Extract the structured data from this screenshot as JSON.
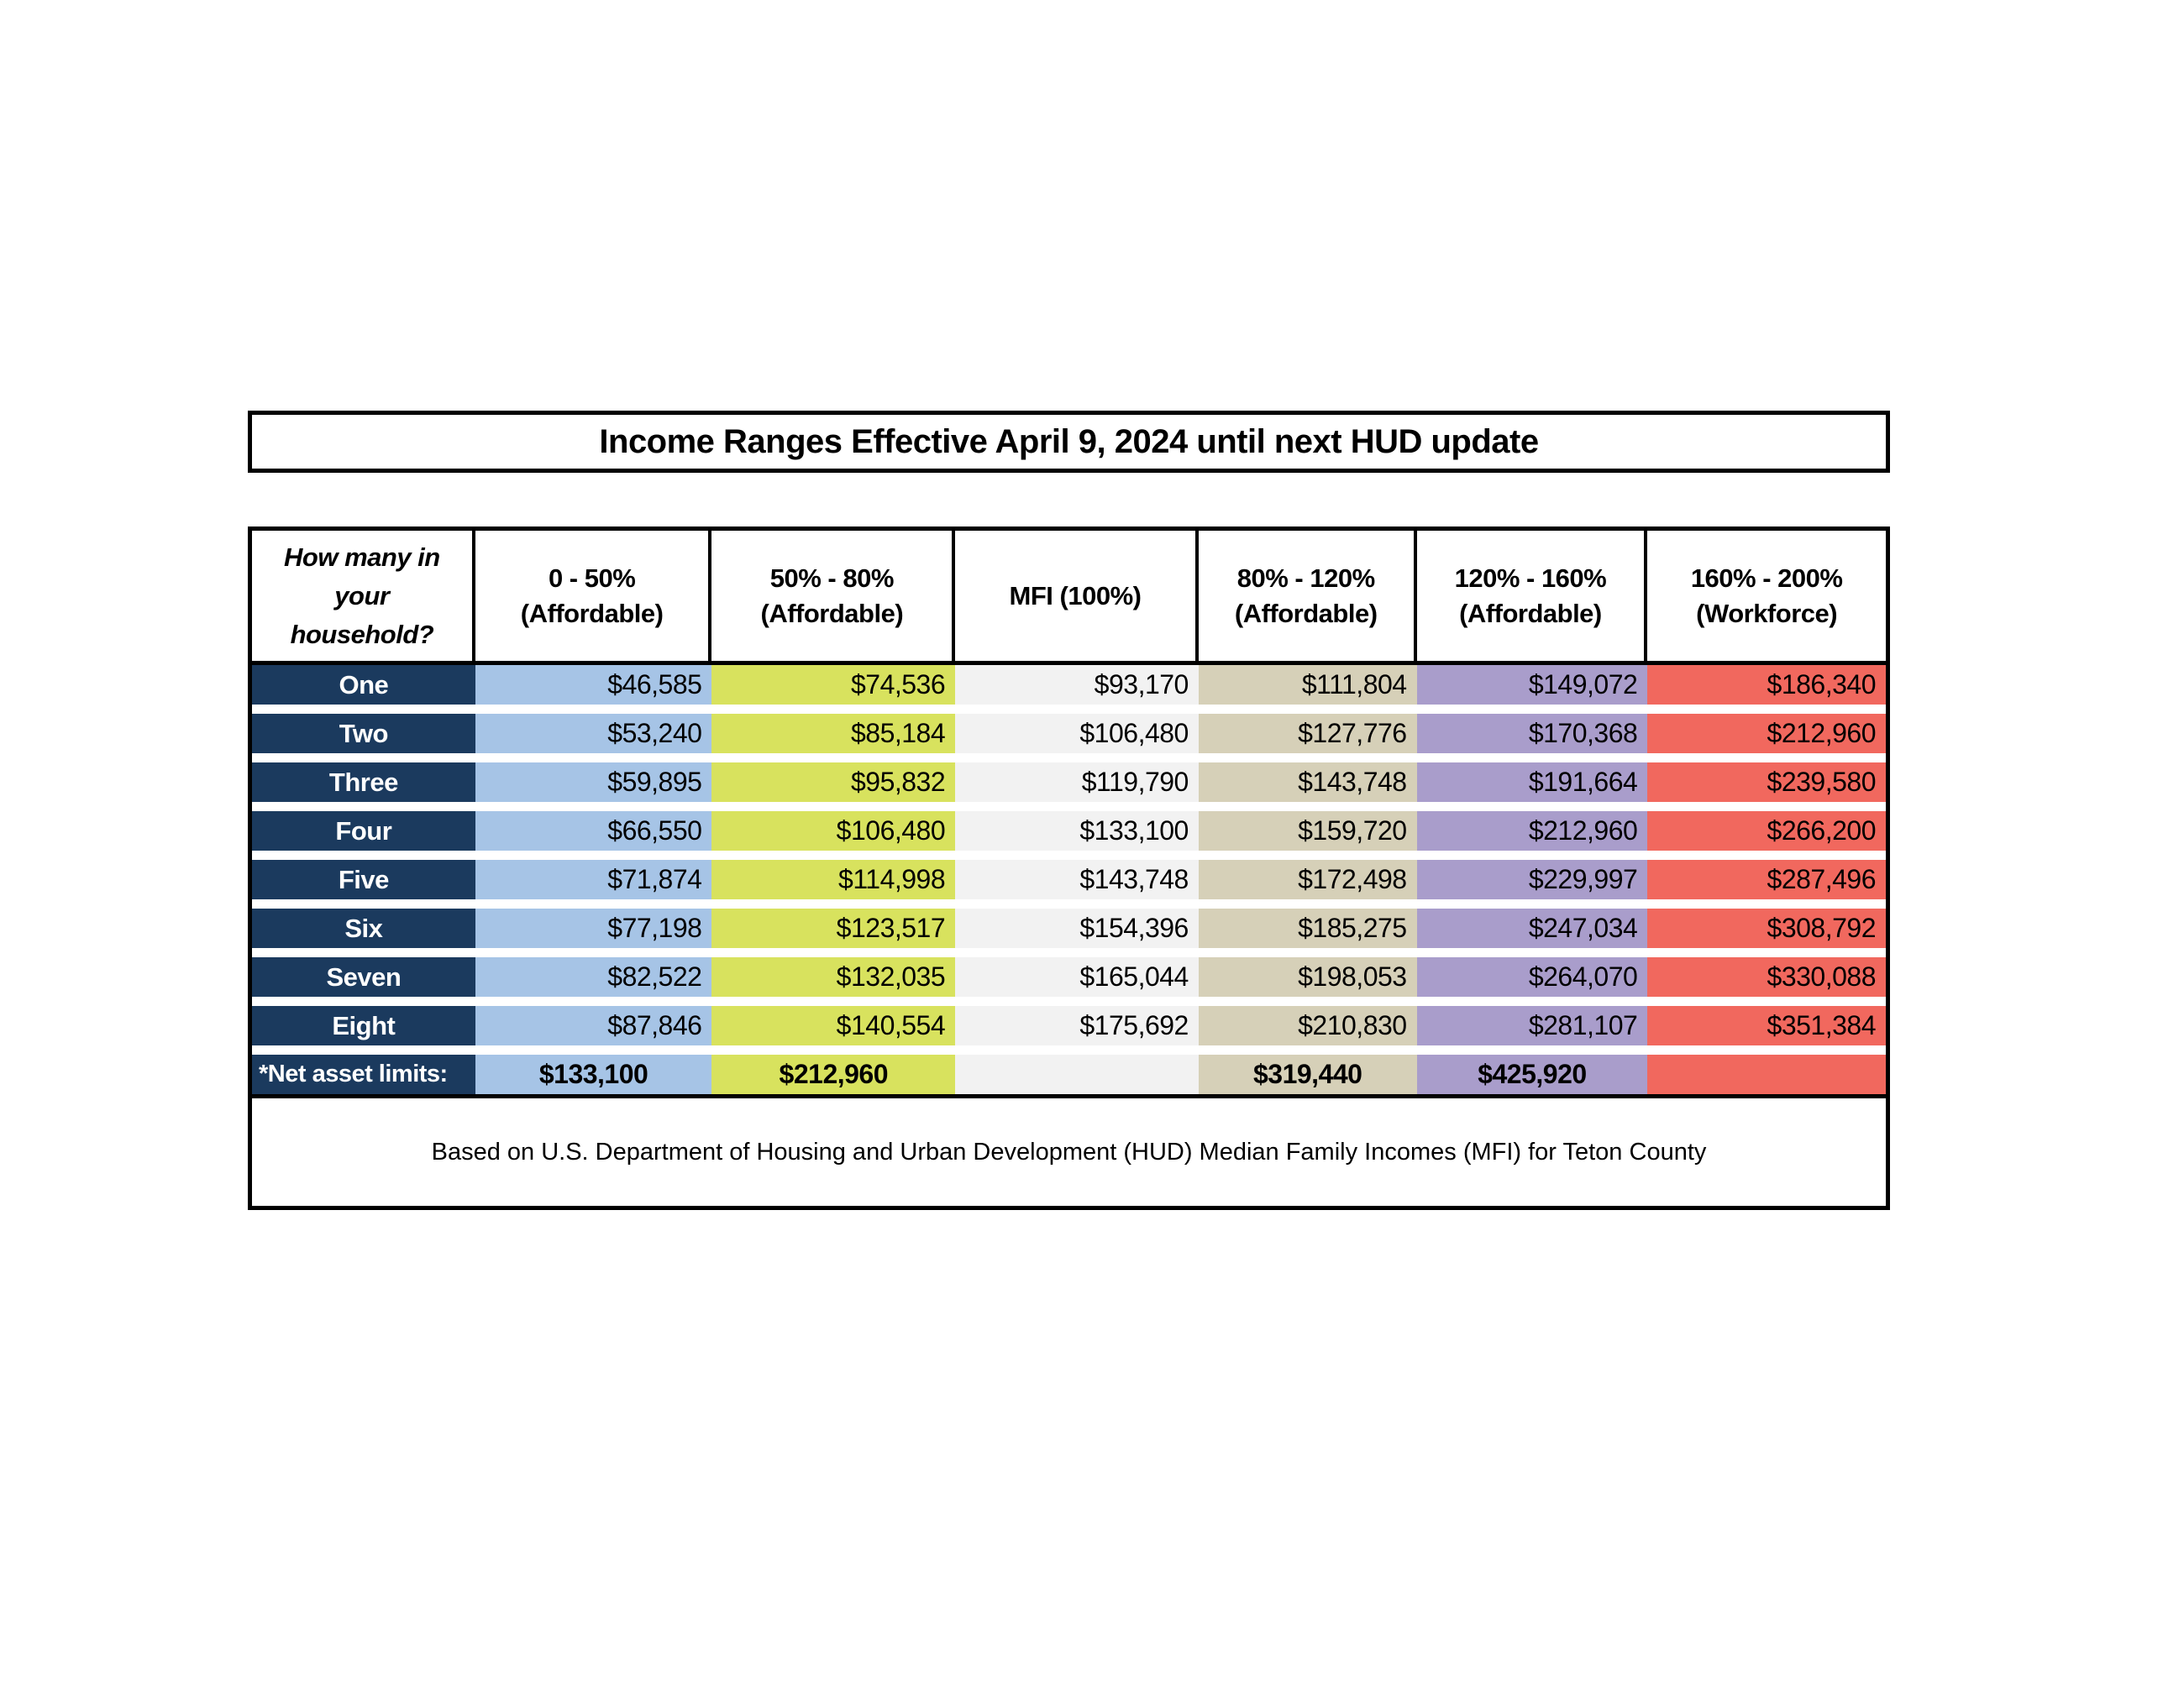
{
  "title": "Income Ranges Effective April 9, 2024 until next HUD update",
  "colors": {
    "navy": "#1b3a5e",
    "blue": "#a6c4e6",
    "green": "#d8e25e",
    "gray": "#f2f2f2",
    "tan": "#d6d0b8",
    "purple": "#a99dcb",
    "red": "#f1685e",
    "border": "#000000"
  },
  "table": {
    "row_header_label": "How many in your household?",
    "columns": [
      {
        "label_line1": "0 - 50%",
        "label_line2": "(Affordable)",
        "fill": "#a6c4e6"
      },
      {
        "label_line1": "50% - 80%",
        "label_line2": "(Affordable)",
        "fill": "#d8e25e"
      },
      {
        "label_line1": "MFI (100%)",
        "label_line2": "",
        "fill": "#f2f2f2"
      },
      {
        "label_line1": "80% - 120%",
        "label_line2": "(Affordable)",
        "fill": "#d6d0b8"
      },
      {
        "label_line1": "120% - 160%",
        "label_line2": "(Affordable)",
        "fill": "#a99dcb"
      },
      {
        "label_line1": "160% - 200%",
        "label_line2": "(Workforce)",
        "fill": "#f1685e"
      }
    ],
    "rows": [
      {
        "household": "One",
        "values": [
          "$46,585",
          "$74,536",
          "$93,170",
          "$111,804",
          "$149,072",
          "$186,340"
        ]
      },
      {
        "household": "Two",
        "values": [
          "$53,240",
          "$85,184",
          "$106,480",
          "$127,776",
          "$170,368",
          "$212,960"
        ]
      },
      {
        "household": "Three",
        "values": [
          "$59,895",
          "$95,832",
          "$119,790",
          "$143,748",
          "$191,664",
          "$239,580"
        ]
      },
      {
        "household": "Four",
        "values": [
          "$66,550",
          "$106,480",
          "$133,100",
          "$159,720",
          "$212,960",
          "$266,200"
        ]
      },
      {
        "household": "Five",
        "values": [
          "$71,874",
          "$114,998",
          "$143,748",
          "$172,498",
          "$229,997",
          "$287,496"
        ]
      },
      {
        "household": "Six",
        "values": [
          "$77,198",
          "$123,517",
          "$154,396",
          "$185,275",
          "$247,034",
          "$308,792"
        ]
      },
      {
        "household": "Seven",
        "values": [
          "$82,522",
          "$132,035",
          "$165,044",
          "$198,053",
          "$264,070",
          "$330,088"
        ]
      },
      {
        "household": "Eight",
        "values": [
          "$87,846",
          "$140,554",
          "$175,692",
          "$210,830",
          "$281,107",
          "$351,384"
        ]
      }
    ],
    "net_asset_row": {
      "label": "*Net asset limits:",
      "values": [
        "$133,100",
        "$212,960",
        "",
        "$319,440",
        "$425,920",
        ""
      ]
    }
  },
  "footnote": "Based on U.S. Department of Housing and Urban Development (HUD) Median Family Incomes (MFI) for Teton County"
}
